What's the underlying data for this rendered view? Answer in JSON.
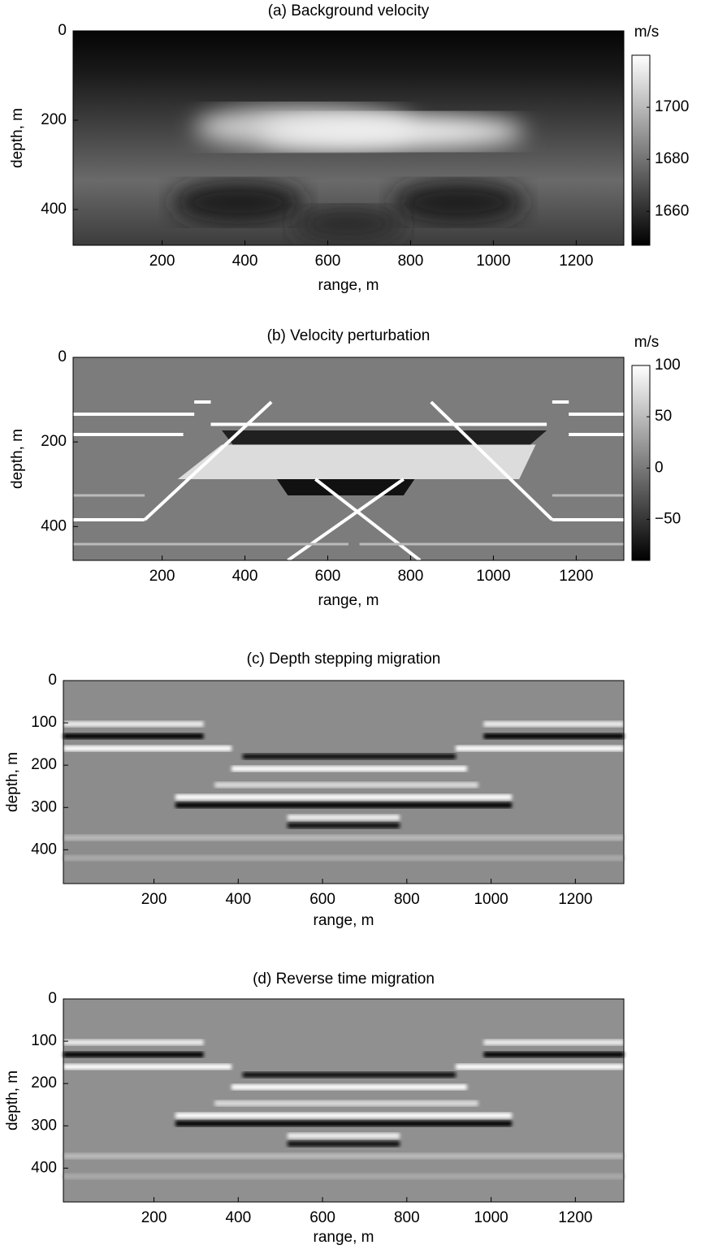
{
  "chart_data": [
    {
      "type": "image",
      "title": "(a) Background velocity",
      "xlabel": "range, m",
      "ylabel": "depth, m",
      "xlim": [
        -15,
        1315
      ],
      "ylim": [
        0,
        480
      ],
      "yaxis_reversed": true,
      "xticks": [
        200,
        400,
        600,
        800,
        1000,
        1200
      ],
      "yticks": [
        0,
        200,
        400
      ],
      "colorbar": {
        "label": "m/s",
        "lim": [
          1647,
          1720
        ],
        "ticks": [
          1660,
          1680,
          1700
        ],
        "colormap": "gray"
      }
    },
    {
      "type": "image",
      "title": "(b) Velocity perturbation",
      "xlabel": "range, m",
      "ylabel": "depth, m",
      "xlim": [
        -15,
        1315
      ],
      "ylim": [
        0,
        480
      ],
      "yaxis_reversed": true,
      "xticks": [
        200,
        400,
        600,
        800,
        1000,
        1200
      ],
      "yticks": [
        0,
        200,
        400
      ],
      "colorbar": {
        "label": "m/s",
        "lim": [
          -90,
          100
        ],
        "ticks": [
          {
            "value": -50,
            "label": "−50"
          },
          0,
          50,
          100
        ],
        "colormap": "gray"
      }
    },
    {
      "type": "image",
      "title": "(c) Depth stepping migration",
      "xlabel": "range, m",
      "ylabel": "depth, m",
      "xlim": [
        -15,
        1315
      ],
      "ylim": [
        0,
        480
      ],
      "yaxis_reversed": true,
      "xticks": [
        200,
        400,
        600,
        800,
        1000,
        1200
      ],
      "yticks": [
        0,
        100,
        200,
        300,
        400
      ]
    },
    {
      "type": "image",
      "title": "(d) Reverse time migration",
      "xlabel": "range, m",
      "ylabel": "depth, m",
      "xlim": [
        -15,
        1315
      ],
      "ylim": [
        0,
        480
      ],
      "yaxis_reversed": true,
      "xticks": [
        200,
        400,
        600,
        800,
        1000,
        1200
      ],
      "yticks": [
        0,
        100,
        200,
        300,
        400
      ]
    }
  ]
}
